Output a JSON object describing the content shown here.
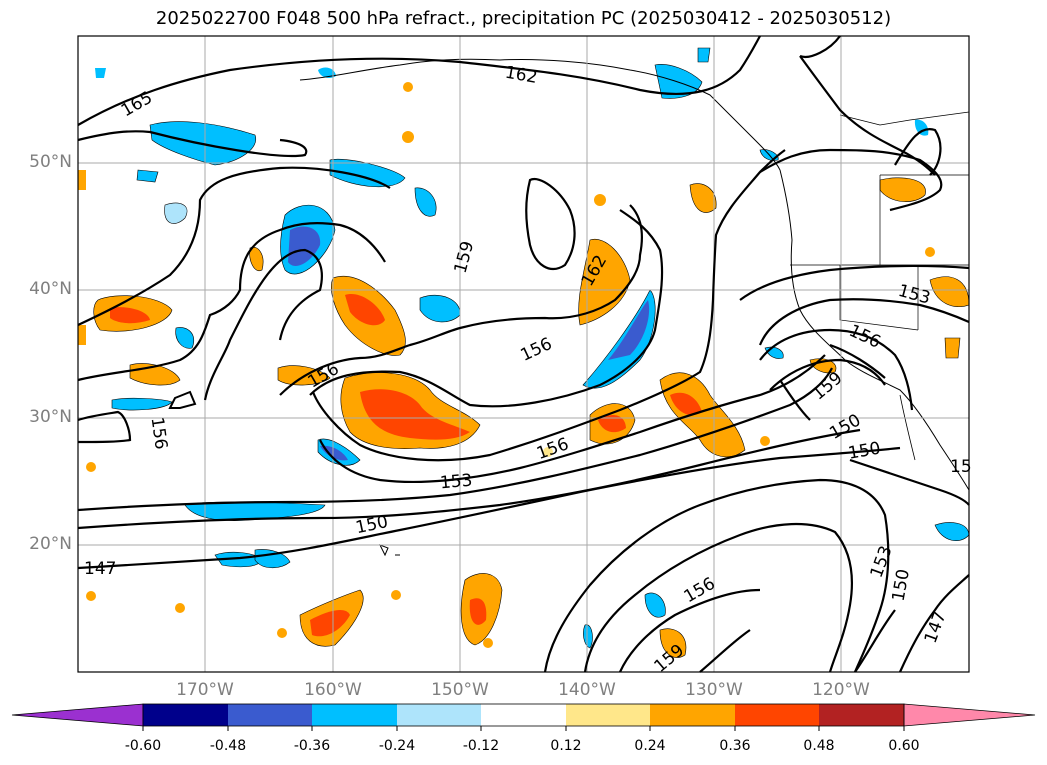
{
  "title": "2025022700 F048 500 hPa refract., precipitation PC (2025030412 - 2025030512)",
  "lat_labels": [
    "50°N",
    "40°N",
    "30°N",
    "20°N"
  ],
  "lon_labels": [
    "170°W",
    "160°W",
    "150°W",
    "140°W",
    "130°W",
    "120°W"
  ],
  "contour_labels": [
    "165",
    "162",
    "159",
    "162",
    "156",
    "156",
    "156",
    "156",
    "153",
    "150",
    "147",
    "153",
    "156",
    "159",
    "150",
    "150",
    "15",
    "156",
    "153",
    "150",
    "147",
    "159"
  ],
  "colorbar": {
    "ticks": [
      "-0.60",
      "-0.48",
      "-0.36",
      "-0.24",
      "-0.12",
      "0.12",
      "0.24",
      "0.36",
      "0.48",
      "0.60"
    ],
    "colors": [
      "#9b30d0",
      "#00008b",
      "#3a5bcf",
      "#00bfff",
      "#aee4fb",
      "#ffffff",
      "#ffe78a",
      "#ffa500",
      "#ff4500",
      "#b22222",
      "#ff88aa"
    ]
  },
  "colors": {
    "contour": "#000000",
    "coast": "#000000",
    "grid": "#aaaaaa",
    "axis_label": "#7f7f7f"
  }
}
